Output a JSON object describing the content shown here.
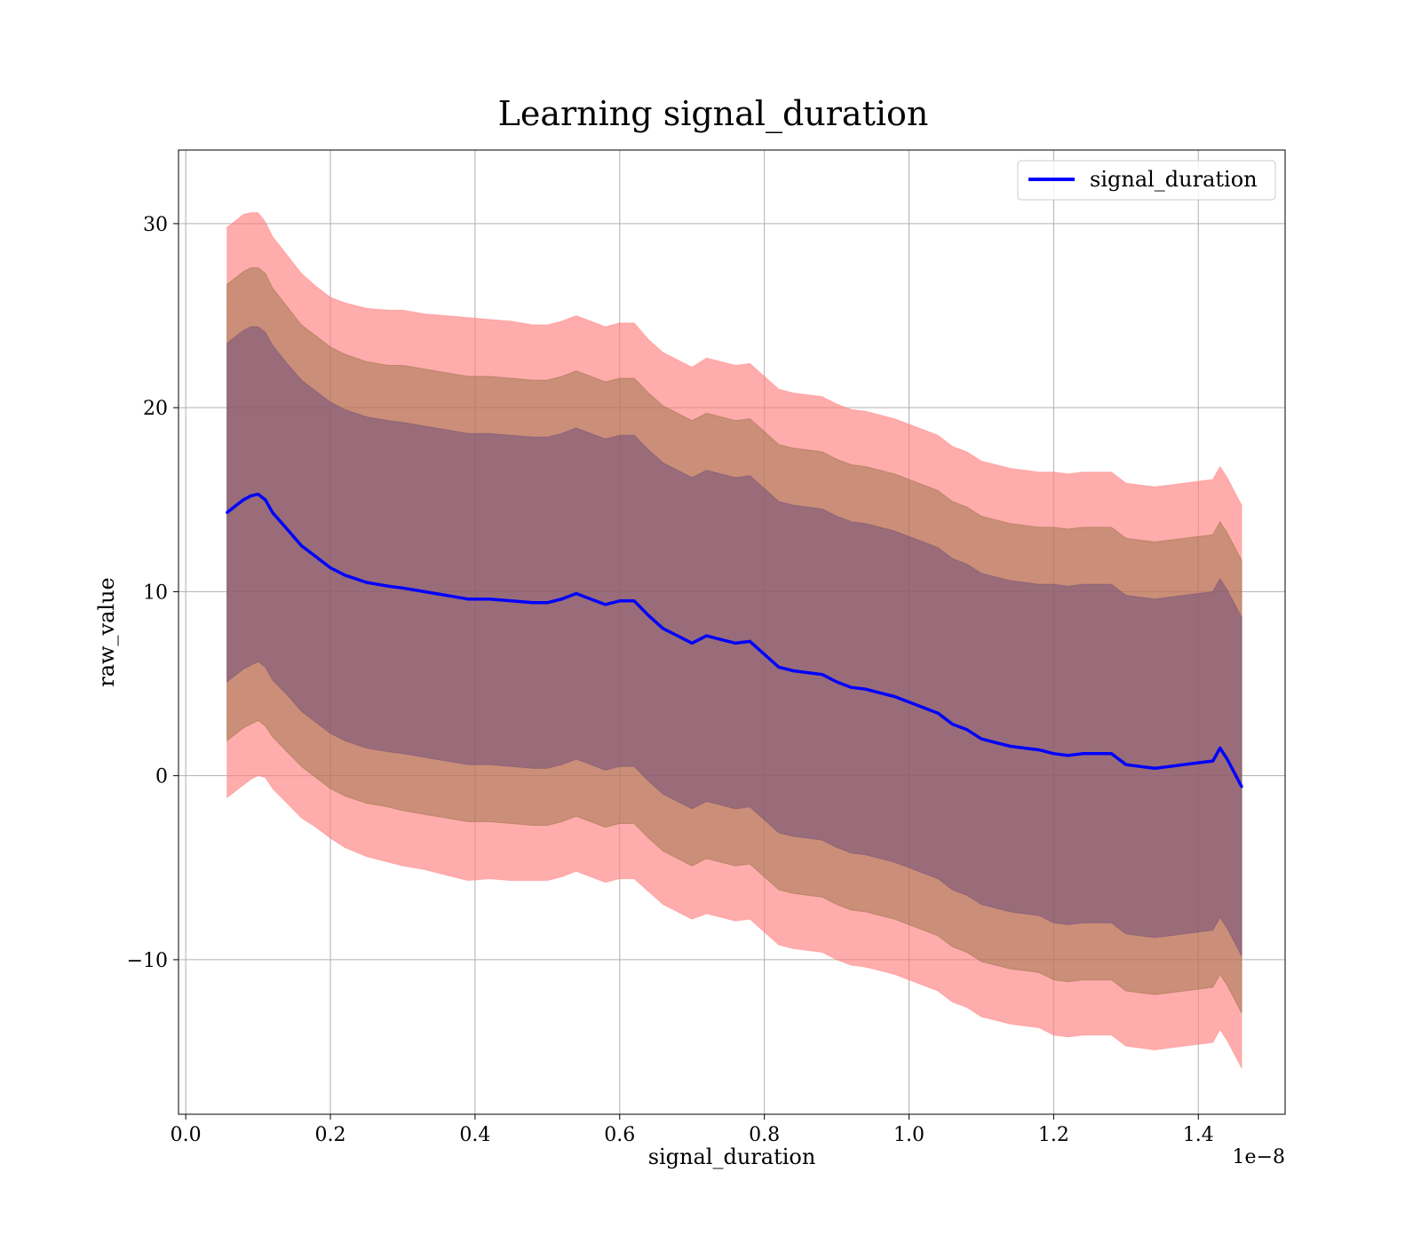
{
  "chart_data": {
    "type": "line",
    "title": "Learning signal_duration",
    "xlabel": "signal_duration",
    "ylabel": "raw_value",
    "x_offset_text": "1e−8",
    "xlim": [
      -0.01,
      1.52
    ],
    "ylim": [
      -18.4,
      34
    ],
    "x_ticks": [
      0.0,
      0.2,
      0.4,
      0.6,
      0.8,
      1.0,
      1.2,
      1.4
    ],
    "x_tick_labels": [
      "0.0",
      "0.2",
      "0.4",
      "0.6",
      "0.8",
      "1.0",
      "1.2",
      "1.4"
    ],
    "y_ticks": [
      -10,
      0,
      10,
      20,
      30
    ],
    "y_tick_labels": [
      "−10",
      "0",
      "10",
      "20",
      "30"
    ],
    "grid": true,
    "legend_position": "top-right",
    "series": [
      {
        "name": "signal_duration",
        "color": "#0000ff",
        "x": [
          0.057,
          0.07,
          0.08,
          0.09,
          0.1,
          0.11,
          0.12,
          0.14,
          0.16,
          0.18,
          0.2,
          0.22,
          0.25,
          0.28,
          0.3,
          0.33,
          0.36,
          0.39,
          0.42,
          0.45,
          0.48,
          0.5,
          0.52,
          0.54,
          0.56,
          0.58,
          0.6,
          0.62,
          0.64,
          0.66,
          0.68,
          0.7,
          0.72,
          0.74,
          0.76,
          0.78,
          0.8,
          0.82,
          0.84,
          0.86,
          0.88,
          0.9,
          0.92,
          0.94,
          0.96,
          0.98,
          1.0,
          1.02,
          1.04,
          1.06,
          1.08,
          1.1,
          1.12,
          1.14,
          1.16,
          1.18,
          1.2,
          1.22,
          1.24,
          1.26,
          1.28,
          1.3,
          1.32,
          1.34,
          1.36,
          1.38,
          1.4,
          1.42,
          1.43,
          1.44,
          1.46
        ],
        "y": [
          14.3,
          14.7,
          15.0,
          15.2,
          15.3,
          15.0,
          14.3,
          13.4,
          12.5,
          11.9,
          11.3,
          10.9,
          10.5,
          10.3,
          10.2,
          10.0,
          9.8,
          9.6,
          9.6,
          9.5,
          9.4,
          9.4,
          9.6,
          9.9,
          9.6,
          9.3,
          9.5,
          9.5,
          8.7,
          8.0,
          7.6,
          7.2,
          7.6,
          7.4,
          7.2,
          7.3,
          6.6,
          5.9,
          5.7,
          5.6,
          5.5,
          5.1,
          4.8,
          4.7,
          4.5,
          4.3,
          4.0,
          3.7,
          3.4,
          2.8,
          2.5,
          2.0,
          1.8,
          1.6,
          1.5,
          1.4,
          1.2,
          1.1,
          1.2,
          1.2,
          1.2,
          0.6,
          0.5,
          0.4,
          0.5,
          0.6,
          0.7,
          0.8,
          1.5,
          0.9,
          -0.6
        ]
      }
    ],
    "bands": [
      {
        "sigma": 3,
        "color": "#ff8080",
        "opacity": 0.65,
        "halfwidth": [
          15.5,
          15.5,
          15.5,
          15.4,
          15.3,
          15.1,
          15.0,
          14.9,
          14.8,
          14.7,
          14.7,
          14.8,
          14.9,
          15.0,
          15.1,
          15.1,
          15.2,
          15.3,
          15.2,
          15.2,
          15.1,
          15.1,
          15.1,
          15.1,
          15.1,
          15.1,
          15.1,
          15.1,
          15.0,
          15.0,
          15.0,
          15.0,
          15.1,
          15.1,
          15.1,
          15.1,
          15.1,
          15.1,
          15.1,
          15.1,
          15.1,
          15.1,
          15.1,
          15.1,
          15.1,
          15.1,
          15.1,
          15.1,
          15.1,
          15.1,
          15.1,
          15.1,
          15.1,
          15.1,
          15.1,
          15.1,
          15.3,
          15.3,
          15.3,
          15.3,
          15.3,
          15.3,
          15.3,
          15.3,
          15.3,
          15.3,
          15.3,
          15.3,
          15.3,
          15.3,
          15.3
        ]
      },
      {
        "sigma": 2,
        "color": "#8c6a3a",
        "opacity": 0.45,
        "halfwidth": [
          12.4,
          12.4,
          12.4,
          12.4,
          12.3,
          12.3,
          12.2,
          12.1,
          12.0,
          12.0,
          12.0,
          12.0,
          12.0,
          12.0,
          12.1,
          12.1,
          12.1,
          12.1,
          12.1,
          12.1,
          12.1,
          12.1,
          12.1,
          12.1,
          12.1,
          12.1,
          12.1,
          12.1,
          12.1,
          12.1,
          12.1,
          12.1,
          12.1,
          12.1,
          12.1,
          12.1,
          12.1,
          12.1,
          12.1,
          12.1,
          12.1,
          12.1,
          12.1,
          12.1,
          12.1,
          12.1,
          12.1,
          12.1,
          12.1,
          12.1,
          12.1,
          12.1,
          12.1,
          12.1,
          12.1,
          12.1,
          12.3,
          12.3,
          12.3,
          12.3,
          12.3,
          12.3,
          12.3,
          12.3,
          12.3,
          12.3,
          12.3,
          12.3,
          12.3,
          12.3,
          12.3
        ]
      },
      {
        "sigma": 1,
        "color": "#6a4a7a",
        "opacity": 0.5,
        "halfwidth": [
          9.2,
          9.2,
          9.2,
          9.2,
          9.1,
          9.1,
          9.1,
          9.0,
          9.0,
          9.0,
          9.0,
          9.0,
          9.0,
          9.0,
          9.0,
          9.0,
          9.0,
          9.0,
          9.0,
          9.0,
          9.0,
          9.0,
          9.0,
          9.0,
          9.0,
          9.0,
          9.0,
          9.0,
          9.0,
          9.0,
          9.0,
          9.0,
          9.0,
          9.0,
          9.0,
          9.0,
          9.0,
          9.0,
          9.0,
          9.0,
          9.0,
          9.0,
          9.0,
          9.0,
          9.0,
          9.0,
          9.0,
          9.0,
          9.0,
          9.0,
          9.0,
          9.0,
          9.0,
          9.0,
          9.0,
          9.0,
          9.2,
          9.2,
          9.2,
          9.2,
          9.2,
          9.2,
          9.2,
          9.2,
          9.2,
          9.2,
          9.2,
          9.2,
          9.2,
          9.2,
          9.2
        ]
      }
    ]
  }
}
